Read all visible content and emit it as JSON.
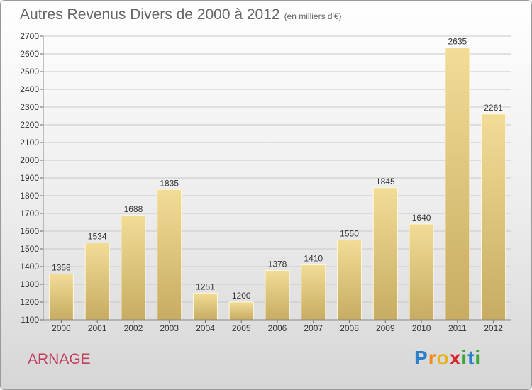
{
  "header": {
    "title": "Autres Revenus Divers de 2000 à 2012",
    "subtitle": "(en milliers d'€)"
  },
  "footer": {
    "place": "ARNAGE",
    "logo": "Proxiti"
  },
  "colors": {
    "bar_top": "#f2dc96",
    "bar_bottom": "#c7ac62",
    "place": "#c0405f"
  },
  "chart_data": {
    "type": "bar",
    "title": "Autres Revenus Divers de 2000 à 2012",
    "subtitle": "(en milliers d'€)",
    "categories": [
      "2000",
      "2001",
      "2002",
      "2003",
      "2004",
      "2005",
      "2006",
      "2007",
      "2008",
      "2009",
      "2010",
      "2011",
      "2012"
    ],
    "values": [
      1358,
      1534,
      1688,
      1835,
      1251,
      1200,
      1378,
      1410,
      1550,
      1845,
      1640,
      2635,
      2261
    ],
    "ylim": [
      1100,
      2700
    ],
    "yticks": [
      1100,
      1200,
      1300,
      1400,
      1500,
      1600,
      1700,
      1800,
      1900,
      2000,
      2100,
      2200,
      2300,
      2400,
      2500,
      2600,
      2700
    ],
    "grid": true,
    "data_labels": true
  }
}
